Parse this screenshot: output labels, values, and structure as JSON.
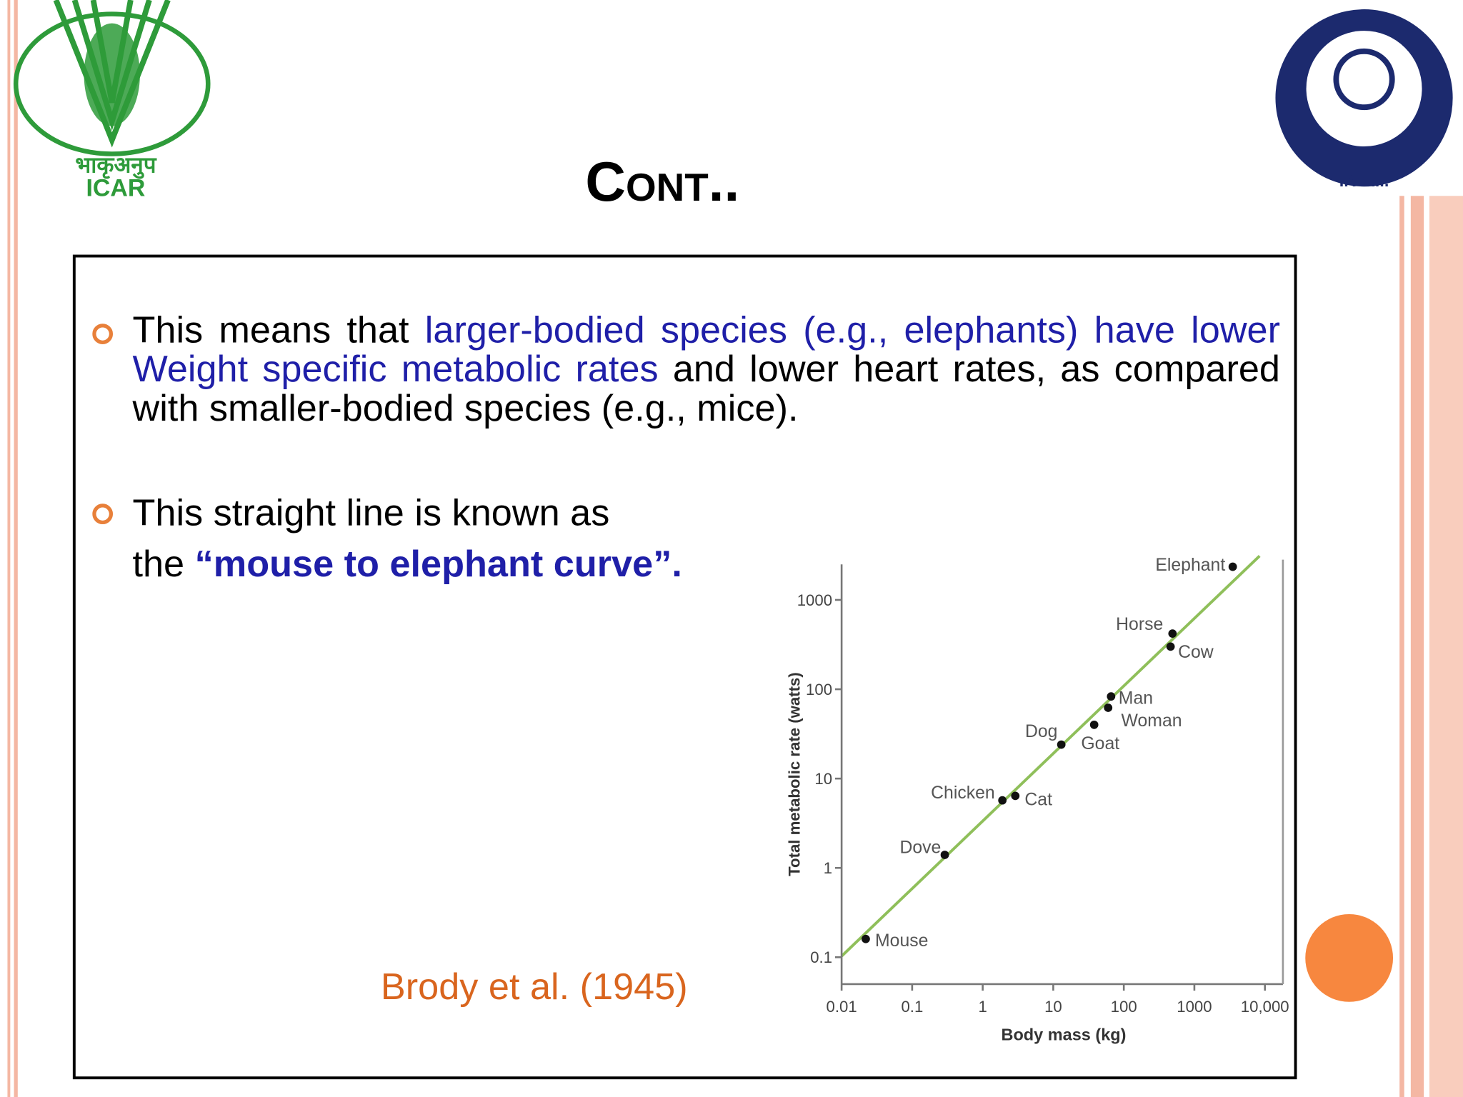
{
  "header": {
    "logo_left_hindi": "भाकृअनुप",
    "logo_left": "ICAR",
    "logo_right": "I.V.R.I.",
    "title": "Cont.."
  },
  "bullets": [
    {
      "runs": [
        {
          "text": "This means that ",
          "color": "#000000"
        },
        {
          "text": "larger-bodied species (e.g., elephants) have lower Weight specific metabolic rates",
          "color": "#1f1fa8"
        },
        {
          "text": " and lower heart rates, as compared with smaller-bodied species (e.g., mice).",
          "color": "#000000"
        }
      ]
    },
    {
      "runs": [
        {
          "text": "This straight line is known as",
          "color": "#000000"
        },
        {
          "text": "the ",
          "color": "#000000"
        },
        {
          "text": "“mouse to elephant curve”.",
          "color": "#1f1fa8"
        }
      ]
    }
  ],
  "citation": "Brody et al. (1945)",
  "chart_data": {
    "type": "scatter",
    "x_label": "Body mass (kg)",
    "y_label": "Total metabolic rate (watts)",
    "log_x": true,
    "log_y": true,
    "point_labels": [
      "Mouse",
      "Dove",
      "Chicken",
      "Cat",
      "Dog",
      "Goat",
      "Woman",
      "Man",
      "Cow",
      "Horse",
      "Elephant"
    ],
    "x": [
      0.022,
      0.29,
      1.9,
      2.9,
      13,
      38,
      60,
      66,
      460,
      490,
      3500
    ],
    "values": [
      0.16,
      1.4,
      5.7,
      6.4,
      24,
      40,
      62,
      83,
      300,
      420,
      2350
    ],
    "color": "#111111",
    "xlim": [
      0.01,
      18000
    ],
    "xticks": [
      0.01,
      0.1,
      1,
      10,
      100,
      1000,
      {
        "value": 10000,
        "label": "10,000"
      }
    ],
    "ylim": [
      0.05,
      2500
    ],
    "yticks": [
      0.1,
      1,
      10,
      100,
      1000
    ]
  }
}
